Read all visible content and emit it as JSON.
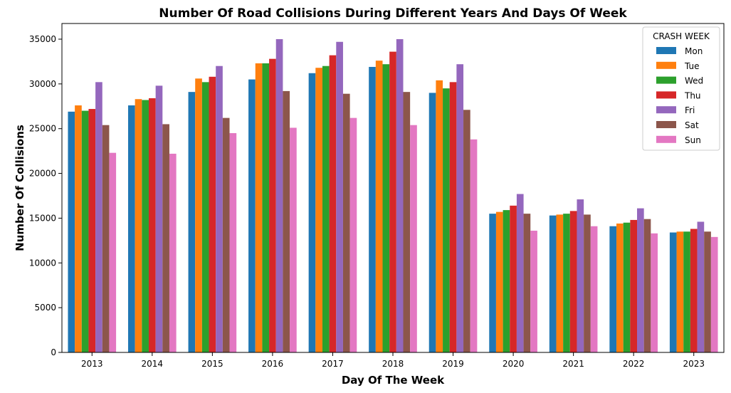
{
  "chart_data": {
    "type": "bar",
    "title": "Number Of Road Collisions During Different Years And Days Of Week",
    "xlabel": "Day Of The Week",
    "ylabel": "Number Of Collisions",
    "categories": [
      "2013",
      "2014",
      "2015",
      "2016",
      "2017",
      "2018",
      "2019",
      "2020",
      "2021",
      "2022",
      "2023"
    ],
    "ylim": [
      0,
      36750
    ],
    "yticks": [
      0,
      5000,
      10000,
      15000,
      20000,
      25000,
      30000,
      35000
    ],
    "grid": false,
    "legend": {
      "title": "CRASH WEEK",
      "placement": "top-right"
    },
    "series": [
      {
        "name": "Mon",
        "color": "#1f77b4",
        "values": [
          26900,
          27600,
          29100,
          30500,
          31200,
          31900,
          29000,
          15500,
          15300,
          14100,
          13400
        ]
      },
      {
        "name": "Tue",
        "color": "#ff7f0e",
        "values": [
          27600,
          28300,
          30600,
          32300,
          31800,
          32600,
          30400,
          15700,
          15400,
          14400,
          13500
        ]
      },
      {
        "name": "Wed",
        "color": "#2ca02c",
        "values": [
          27000,
          28200,
          30200,
          32300,
          32000,
          32200,
          29500,
          15900,
          15500,
          14500,
          13500
        ]
      },
      {
        "name": "Thu",
        "color": "#d62728",
        "values": [
          27200,
          28400,
          30800,
          32800,
          33200,
          33600,
          30200,
          16400,
          15800,
          14800,
          13800
        ]
      },
      {
        "name": "Fri",
        "color": "#9467bd",
        "values": [
          30200,
          29800,
          32000,
          35000,
          34700,
          35000,
          32200,
          17700,
          17100,
          16100,
          14600
        ]
      },
      {
        "name": "Sat",
        "color": "#8c564b",
        "values": [
          25400,
          25500,
          26200,
          29200,
          28900,
          29100,
          27100,
          15500,
          15400,
          14900,
          13500
        ]
      },
      {
        "name": "Sun",
        "color": "#e377c2",
        "values": [
          22300,
          22200,
          24500,
          25100,
          26200,
          25400,
          23800,
          13600,
          14100,
          13300,
          12900
        ]
      }
    ]
  }
}
